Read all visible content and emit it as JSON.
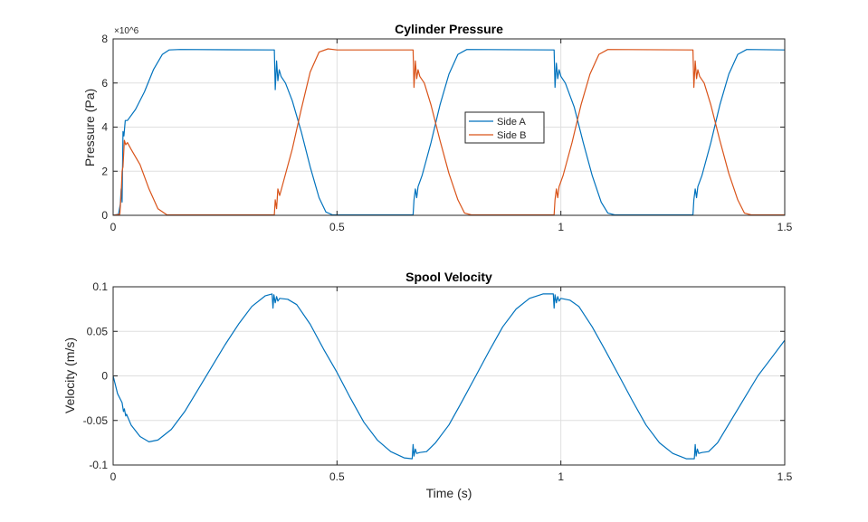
{
  "chart_data": [
    {
      "type": "line",
      "title": "Cylinder Pressure",
      "xlabel": "",
      "ylabel": "Pressure (Pa)",
      "y_exponent_label": "×10^6",
      "xlim": [
        0,
        1.5
      ],
      "ylim": [
        0,
        8000000.0
      ],
      "xticks": [
        0,
        0.5,
        1,
        1.5
      ],
      "xtick_labels": [
        "0",
        "0.5",
        "1",
        "1.5"
      ],
      "yticks": [
        0,
        2000000.0,
        4000000.0,
        6000000.0,
        8000000.0
      ],
      "ytick_labels": [
        "0",
        "2",
        "4",
        "6",
        "8"
      ],
      "grid": true,
      "legend": "center",
      "series": [
        {
          "name": "Side A",
          "color": "#0072bd",
          "points": [
            [
              0,
              0
            ],
            [
              0.012,
              50000.0
            ],
            [
              0.016,
              500000.0
            ],
            [
              0.018,
              1200000.0
            ],
            [
              0.02,
              600000.0
            ],
            [
              0.022,
              3800000.0
            ],
            [
              0.024,
              3600000.0
            ],
            [
              0.027,
              4300000.0
            ],
            [
              0.032,
              4300000.0
            ],
            [
              0.05,
              4800000.0
            ],
            [
              0.07,
              5600000.0
            ],
            [
              0.09,
              6600000.0
            ],
            [
              0.11,
              7300000.0
            ],
            [
              0.125,
              7500000.0
            ],
            [
              0.15,
              7520000.0
            ],
            [
              0.36,
              7500000.0
            ],
            [
              0.362,
              5700000.0
            ],
            [
              0.365,
              7000000.0
            ],
            [
              0.368,
              6100000.0
            ],
            [
              0.371,
              6600000.0
            ],
            [
              0.375,
              6300000.0
            ],
            [
              0.385,
              6000000.0
            ],
            [
              0.4,
              5200000.0
            ],
            [
              0.42,
              3800000.0
            ],
            [
              0.44,
              2200000.0
            ],
            [
              0.46,
              800000.0
            ],
            [
              0.475,
              150000.0
            ],
            [
              0.49,
              20000.0
            ],
            [
              0.67,
              20000.0
            ],
            [
              0.672,
              700000.0
            ],
            [
              0.675,
              1200000.0
            ],
            [
              0.678,
              800000.0
            ],
            [
              0.681,
              1300000.0
            ],
            [
              0.69,
              1800000.0
            ],
            [
              0.71,
              3300000.0
            ],
            [
              0.73,
              5000000.0
            ],
            [
              0.75,
              6400000.0
            ],
            [
              0.77,
              7300000.0
            ],
            [
              0.79,
              7520000.0
            ],
            [
              0.985,
              7500000.0
            ],
            [
              0.987,
              5800000.0
            ],
            [
              0.99,
              6900000.0
            ],
            [
              0.993,
              6200000.0
            ],
            [
              0.996,
              6600000.0
            ],
            [
              1.0,
              6300000.0
            ],
            [
              1.01,
              6000000.0
            ],
            [
              1.03,
              4900000.0
            ],
            [
              1.05,
              3300000.0
            ],
            [
              1.07,
              1800000.0
            ],
            [
              1.09,
              600000.0
            ],
            [
              1.105,
              100000.0
            ],
            [
              1.12,
              20000.0
            ],
            [
              1.295,
              20000.0
            ],
            [
              1.297,
              700000.0
            ],
            [
              1.3,
              1200000.0
            ],
            [
              1.303,
              800000.0
            ],
            [
              1.306,
              1300000.0
            ],
            [
              1.315,
              1800000.0
            ],
            [
              1.335,
              3300000.0
            ],
            [
              1.355,
              5000000.0
            ],
            [
              1.375,
              6400000.0
            ],
            [
              1.395,
              7300000.0
            ],
            [
              1.415,
              7520000.0
            ],
            [
              1.5,
              7500000.0
            ]
          ]
        },
        {
          "name": "Side B",
          "color": "#d95319",
          "points": [
            [
              0,
              0
            ],
            [
              0.015,
              50000.0
            ],
            [
              0.018,
              1000000.0
            ],
            [
              0.02,
              2000000.0
            ],
            [
              0.022,
              2200000.0
            ],
            [
              0.025,
              3400000.0
            ],
            [
              0.028,
              3200000.0
            ],
            [
              0.032,
              3300000.0
            ],
            [
              0.04,
              3000000.0
            ],
            [
              0.06,
              2300000.0
            ],
            [
              0.08,
              1200000.0
            ],
            [
              0.1,
              300000.0
            ],
            [
              0.12,
              20000.0
            ],
            [
              0.36,
              20000.0
            ],
            [
              0.362,
              700000.0
            ],
            [
              0.365,
              300000.0
            ],
            [
              0.368,
              1200000.0
            ],
            [
              0.372,
              900000.0
            ],
            [
              0.38,
              1500000.0
            ],
            [
              0.4,
              3000000.0
            ],
            [
              0.42,
              4800000.0
            ],
            [
              0.44,
              6500000.0
            ],
            [
              0.46,
              7400000.0
            ],
            [
              0.48,
              7550000.0
            ],
            [
              0.5,
              7500000.0
            ],
            [
              0.67,
              7500000.0
            ],
            [
              0.672,
              5800000.0
            ],
            [
              0.675,
              7000000.0
            ],
            [
              0.678,
              6200000.0
            ],
            [
              0.681,
              6600000.0
            ],
            [
              0.685,
              6300000.0
            ],
            [
              0.695,
              6000000.0
            ],
            [
              0.71,
              5000000.0
            ],
            [
              0.73,
              3400000.0
            ],
            [
              0.75,
              1900000.0
            ],
            [
              0.77,
              700000.0
            ],
            [
              0.785,
              100000.0
            ],
            [
              0.8,
              20000.0
            ],
            [
              0.985,
              20000.0
            ],
            [
              0.987,
              700000.0
            ],
            [
              0.99,
              1200000.0
            ],
            [
              0.993,
              800000.0
            ],
            [
              0.996,
              1300000.0
            ],
            [
              1.005,
              1800000.0
            ],
            [
              1.025,
              3300000.0
            ],
            [
              1.045,
              5000000.0
            ],
            [
              1.065,
              6400000.0
            ],
            [
              1.085,
              7300000.0
            ],
            [
              1.105,
              7520000.0
            ],
            [
              1.295,
              7500000.0
            ],
            [
              1.297,
              5800000.0
            ],
            [
              1.3,
              7000000.0
            ],
            [
              1.303,
              6200000.0
            ],
            [
              1.306,
              6600000.0
            ],
            [
              1.31,
              6300000.0
            ],
            [
              1.32,
              6000000.0
            ],
            [
              1.335,
              5000000.0
            ],
            [
              1.355,
              3400000.0
            ],
            [
              1.375,
              1900000.0
            ],
            [
              1.395,
              700000.0
            ],
            [
              1.41,
              100000.0
            ],
            [
              1.425,
              20000.0
            ],
            [
              1.5,
              20000.0
            ]
          ]
        }
      ]
    },
    {
      "type": "line",
      "title": "Spool Velocity",
      "xlabel": "Time (s)",
      "ylabel": "Velocity (m/s)",
      "xlim": [
        0,
        1.5
      ],
      "ylim": [
        -0.1,
        0.1
      ],
      "xticks": [
        0,
        0.5,
        1,
        1.5
      ],
      "xtick_labels": [
        "0",
        "0.5",
        "1",
        "1.5"
      ],
      "yticks": [
        -0.1,
        -0.05,
        0,
        0.05,
        0.1
      ],
      "ytick_labels": [
        "-0.1",
        "-0.05",
        "0",
        "0.05",
        "0.1"
      ],
      "grid": true,
      "series": [
        {
          "color": "#0072bd",
          "points": [
            [
              0,
              0
            ],
            [
              0.01,
              -0.02
            ],
            [
              0.02,
              -0.03
            ],
            [
              0.023,
              -0.04
            ],
            [
              0.025,
              -0.037
            ],
            [
              0.028,
              -0.045
            ],
            [
              0.03,
              -0.043
            ],
            [
              0.04,
              -0.055
            ],
            [
              0.06,
              -0.068
            ],
            [
              0.08,
              -0.074
            ],
            [
              0.1,
              -0.072
            ],
            [
              0.13,
              -0.06
            ],
            [
              0.16,
              -0.04
            ],
            [
              0.19,
              -0.015
            ],
            [
              0.22,
              0.01
            ],
            [
              0.25,
              0.035
            ],
            [
              0.28,
              0.058
            ],
            [
              0.31,
              0.078
            ],
            [
              0.34,
              0.09
            ],
            [
              0.355,
              0.092
            ],
            [
              0.357,
              0.076
            ],
            [
              0.359,
              0.091
            ],
            [
              0.362,
              0.082
            ],
            [
              0.365,
              0.089
            ],
            [
              0.368,
              0.084
            ],
            [
              0.372,
              0.087
            ],
            [
              0.39,
              0.086
            ],
            [
              0.41,
              0.08
            ],
            [
              0.44,
              0.058
            ],
            [
              0.47,
              0.03
            ],
            [
              0.5,
              0.004
            ],
            [
              0.53,
              -0.025
            ],
            [
              0.56,
              -0.052
            ],
            [
              0.59,
              -0.072
            ],
            [
              0.62,
              -0.085
            ],
            [
              0.65,
              -0.092
            ],
            [
              0.668,
              -0.093
            ],
            [
              0.67,
              -0.077
            ],
            [
              0.672,
              -0.09
            ],
            [
              0.675,
              -0.082
            ],
            [
              0.678,
              -0.087
            ],
            [
              0.685,
              -0.086
            ],
            [
              0.7,
              -0.085
            ],
            [
              0.72,
              -0.075
            ],
            [
              0.75,
              -0.055
            ],
            [
              0.78,
              -0.028
            ],
            [
              0.81,
              0.0
            ],
            [
              0.84,
              0.028
            ],
            [
              0.87,
              0.055
            ],
            [
              0.9,
              0.075
            ],
            [
              0.93,
              0.087
            ],
            [
              0.96,
              0.092
            ],
            [
              0.983,
              0.092
            ],
            [
              0.985,
              0.076
            ],
            [
              0.987,
              0.091
            ],
            [
              0.99,
              0.082
            ],
            [
              0.993,
              0.089
            ],
            [
              0.996,
              0.084
            ],
            [
              1.0,
              0.087
            ],
            [
              1.02,
              0.085
            ],
            [
              1.04,
              0.078
            ],
            [
              1.07,
              0.055
            ],
            [
              1.1,
              0.028
            ],
            [
              1.13,
              0.0
            ],
            [
              1.16,
              -0.028
            ],
            [
              1.19,
              -0.055
            ],
            [
              1.22,
              -0.075
            ],
            [
              1.25,
              -0.087
            ],
            [
              1.28,
              -0.093
            ],
            [
              1.298,
              -0.093
            ],
            [
              1.3,
              -0.077
            ],
            [
              1.302,
              -0.09
            ],
            [
              1.305,
              -0.082
            ],
            [
              1.308,
              -0.087
            ],
            [
              1.315,
              -0.086
            ],
            [
              1.33,
              -0.085
            ],
            [
              1.35,
              -0.075
            ],
            [
              1.38,
              -0.05
            ],
            [
              1.41,
              -0.025
            ],
            [
              1.44,
              0.0
            ],
            [
              1.47,
              0.02
            ],
            [
              1.5,
              0.04
            ]
          ]
        }
      ]
    }
  ]
}
